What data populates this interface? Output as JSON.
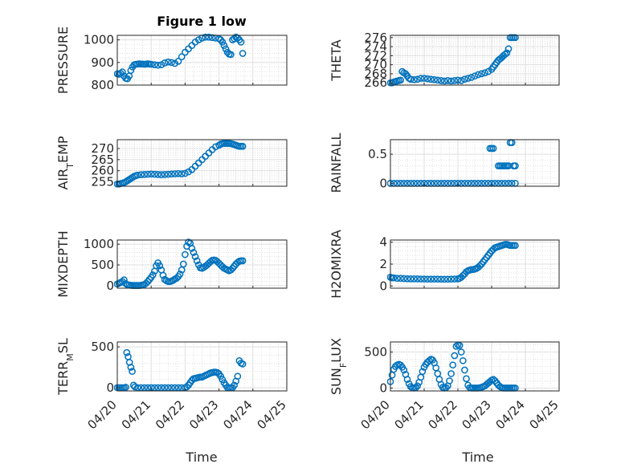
{
  "figure": {
    "title": "Figure 1 low",
    "marker_color": "#0072BD",
    "x_tick_labels": [
      "04/20",
      "04/21",
      "04/22",
      "04/23",
      "04/24",
      "04/25"
    ],
    "x_label": "Time"
  },
  "chart_data": [
    {
      "type": "scatter",
      "ylabel": "PRESSURE",
      "ylim": [
        800,
        1020
      ],
      "ytick_values": [
        800,
        900,
        1000
      ],
      "x": [
        0,
        0.05,
        0.1,
        0.15,
        0.2,
        0.25,
        0.3,
        0.35,
        0.4,
        0.45,
        0.5,
        0.55,
        0.6,
        0.65,
        0.7,
        0.75,
        0.8,
        0.85,
        0.9,
        0.95,
        1,
        1.1,
        1.2,
        1.3,
        1.4,
        1.5,
        1.6,
        1.7,
        1.8,
        1.9,
        2,
        2.1,
        2.2,
        2.3,
        2.4,
        2.5,
        2.6,
        2.7,
        2.8,
        2.9,
        3,
        3.05,
        3.1,
        3.15,
        3.2,
        3.25,
        3.3,
        3.35,
        3.4,
        3.45,
        3.5,
        3.55,
        3.6,
        3.65,
        3.7
      ],
      "y": [
        850,
        848,
        852,
        858,
        840,
        830,
        828,
        840,
        865,
        880,
        890,
        892,
        893,
        894,
        893,
        893,
        892,
        893,
        894,
        893,
        892,
        890,
        888,
        890,
        898,
        902,
        900,
        896,
        905,
        925,
        945,
        960,
        975,
        990,
        1000,
        1008,
        1012,
        1012,
        1010,
        1008,
        1005,
        1000,
        990,
        975,
        960,
        945,
        937,
        935,
        1000,
        1005,
        1012,
        1008,
        1000,
        990,
        940
      ]
    },
    {
      "type": "scatter",
      "ylabel": "THETA",
      "ylim": [
        265.5,
        276.5
      ],
      "ytick_values": [
        266,
        268,
        270,
        272,
        274,
        276
      ],
      "x": [
        0,
        0.05,
        0.1,
        0.15,
        0.2,
        0.25,
        0.3,
        0.35,
        0.4,
        0.45,
        0.5,
        0.55,
        0.6,
        0.7,
        0.8,
        0.9,
        1,
        1.1,
        1.2,
        1.3,
        1.4,
        1.5,
        1.6,
        1.7,
        1.8,
        1.9,
        2,
        2.1,
        2.2,
        2.3,
        2.4,
        2.5,
        2.6,
        2.7,
        2.8,
        2.9,
        3,
        3.05,
        3.1,
        3.15,
        3.2,
        3.25,
        3.3,
        3.35,
        3.4,
        3.45,
        3.5,
        3.55,
        3.6,
        3.65,
        3.7
      ],
      "y": [
        266,
        266,
        266.2,
        266.3,
        266.4,
        266.5,
        266.6,
        268.5,
        268.2,
        268,
        267.5,
        267,
        266.8,
        266.7,
        266.8,
        267,
        267,
        266.9,
        266.8,
        266.7,
        266.6,
        266.5,
        266.4,
        266.5,
        266.4,
        266.5,
        266.6,
        266.5,
        266.8,
        267,
        267.2,
        267.5,
        267.8,
        268,
        268.2,
        268.5,
        269,
        269.5,
        270,
        270.5,
        271,
        271.3,
        271.6,
        272,
        272.3,
        272.6,
        273.5,
        276,
        276,
        276,
        276
      ]
    },
    {
      "type": "scatter",
      "ylabel": "AIR_TEMP",
      "ylim": [
        253,
        274
      ],
      "ytick_values": [
        255,
        260,
        265,
        270
      ],
      "x": [
        0,
        0.05,
        0.1,
        0.15,
        0.2,
        0.25,
        0.3,
        0.35,
        0.4,
        0.45,
        0.5,
        0.55,
        0.6,
        0.7,
        0.8,
        0.9,
        1,
        1.1,
        1.2,
        1.3,
        1.4,
        1.5,
        1.6,
        1.7,
        1.8,
        1.9,
        2,
        2.1,
        2.2,
        2.3,
        2.4,
        2.5,
        2.6,
        2.7,
        2.8,
        2.9,
        3,
        3.05,
        3.1,
        3.15,
        3.2,
        3.25,
        3.3,
        3.35,
        3.4,
        3.45,
        3.5,
        3.55,
        3.6,
        3.65,
        3.7
      ],
      "y": [
        254,
        254,
        254.2,
        254.4,
        254.6,
        255,
        255.5,
        256,
        256.5,
        257,
        257.5,
        257.8,
        258,
        258.2,
        258.3,
        258.4,
        258.5,
        258.4,
        258.3,
        258.2,
        258.3,
        258.4,
        258.5,
        258.6,
        258.7,
        258.6,
        258.8,
        259.5,
        260.5,
        262,
        263.5,
        265,
        266.5,
        268,
        269.5,
        270.8,
        271.5,
        272,
        272.2,
        272.3,
        272.3,
        272.3,
        272.3,
        272.2,
        272,
        271.8,
        271.5,
        271.2,
        271,
        271,
        271
      ]
    },
    {
      "type": "scatter",
      "ylabel": "RAINFALL",
      "ylim": [
        -0.05,
        0.75
      ],
      "ytick_values": [
        0,
        0.5
      ],
      "x": [
        0,
        0.1,
        0.2,
        0.3,
        0.4,
        0.5,
        0.6,
        0.7,
        0.8,
        0.9,
        1,
        1.1,
        1.2,
        1.3,
        1.4,
        1.5,
        1.6,
        1.7,
        1.8,
        1.9,
        2,
        2.1,
        2.2,
        2.3,
        2.4,
        2.5,
        2.6,
        2.7,
        2.8,
        2.9,
        3,
        3.1,
        3.2,
        3.3,
        3.4,
        3.5,
        3.6,
        3.7,
        2.95,
        3.0,
        3.05,
        3.2,
        3.25,
        3.3,
        3.35,
        3.4,
        3.45,
        3.5,
        3.55,
        3.6,
        3.65,
        3.7
      ],
      "y": [
        0,
        0,
        0,
        0,
        0,
        0,
        0,
        0,
        0,
        0,
        0,
        0,
        0,
        0,
        0,
        0,
        0,
        0,
        0,
        0,
        0,
        0,
        0,
        0,
        0,
        0,
        0,
        0,
        0,
        0,
        0,
        0,
        0,
        0,
        0,
        0,
        0,
        0,
        0.6,
        0.6,
        0.6,
        0.3,
        0.3,
        0.3,
        0.3,
        0.3,
        0.3,
        0.3,
        0.7,
        0.7,
        0.3,
        0.3
      ]
    },
    {
      "type": "scatter",
      "ylabel": "MIXDEPTH",
      "ylim": [
        -60,
        1100
      ],
      "ytick_values": [
        0,
        500,
        1000
      ],
      "x": [
        0,
        0.05,
        0.1,
        0.15,
        0.2,
        0.25,
        0.3,
        0.35,
        0.4,
        0.45,
        0.5,
        0.55,
        0.6,
        0.65,
        0.7,
        0.75,
        0.8,
        0.85,
        0.9,
        0.95,
        1,
        1.05,
        1.1,
        1.15,
        1.2,
        1.25,
        1.3,
        1.35,
        1.4,
        1.45,
        1.5,
        1.55,
        1.6,
        1.65,
        1.7,
        1.75,
        1.8,
        1.85,
        1.9,
        1.95,
        2,
        2.05,
        2.1,
        2.15,
        2.2,
        2.25,
        2.3,
        2.35,
        2.4,
        2.45,
        2.5,
        2.55,
        2.6,
        2.65,
        2.7,
        2.75,
        2.8,
        2.85,
        2.9,
        2.95,
        3,
        3.05,
        3.1,
        3.15,
        3.2,
        3.25,
        3.3,
        3.35,
        3.4,
        3.45,
        3.5,
        3.55,
        3.6,
        3.65,
        3.7
      ],
      "y": [
        40,
        60,
        80,
        100,
        140,
        50,
        20,
        15,
        10,
        5,
        5,
        5,
        5,
        5,
        10,
        15,
        30,
        60,
        100,
        150,
        200,
        260,
        350,
        480,
        550,
        480,
        380,
        250,
        150,
        120,
        100,
        100,
        110,
        130,
        160,
        180,
        220,
        280,
        380,
        520,
        750,
        950,
        1050,
        1020,
        900,
        800,
        700,
        600,
        500,
        430,
        420,
        440,
        470,
        500,
        540,
        580,
        610,
        620,
        610,
        580,
        540,
        500,
        460,
        420,
        400,
        380,
        360,
        380,
        420,
        470,
        520,
        560,
        590,
        600,
        600
      ]
    },
    {
      "type": "scatter",
      "ylabel": "H2OMIXRA",
      "ylim": [
        -0.2,
        4.2
      ],
      "ytick_values": [
        0,
        2,
        4
      ],
      "x": [
        0,
        0.05,
        0.1,
        0.2,
        0.3,
        0.4,
        0.5,
        0.6,
        0.7,
        0.8,
        0.9,
        1,
        1.1,
        1.2,
        1.3,
        1.4,
        1.5,
        1.6,
        1.7,
        1.8,
        1.9,
        2,
        2.05,
        2.1,
        2.15,
        2.2,
        2.25,
        2.3,
        2.35,
        2.4,
        2.45,
        2.5,
        2.55,
        2.6,
        2.65,
        2.7,
        2.75,
        2.8,
        2.85,
        2.9,
        2.95,
        3,
        3.05,
        3.1,
        3.15,
        3.2,
        3.25,
        3.3,
        3.35,
        3.4,
        3.45,
        3.5,
        3.55,
        3.6,
        3.65,
        3.7
      ],
      "y": [
        0.8,
        0.75,
        0.75,
        0.7,
        0.7,
        0.68,
        0.66,
        0.65,
        0.65,
        0.65,
        0.64,
        0.64,
        0.63,
        0.63,
        0.63,
        0.63,
        0.62,
        0.62,
        0.62,
        0.63,
        0.64,
        0.65,
        0.7,
        0.8,
        0.95,
        1.1,
        1.3,
        1.4,
        1.45,
        1.5,
        1.5,
        1.55,
        1.6,
        1.7,
        1.85,
        2,
        2.2,
        2.4,
        2.6,
        2.8,
        3.0,
        3.2,
        3.35,
        3.5,
        3.55,
        3.6,
        3.65,
        3.7,
        3.75,
        3.8,
        3.8,
        3.75,
        3.7,
        3.7,
        3.7,
        3.7
      ]
    },
    {
      "type": "scatter",
      "ylabel": "TERR_MSL",
      "ylim": [
        -40,
        560
      ],
      "ytick_values": [
        0,
        500
      ],
      "x": [
        0,
        0.05,
        0.1,
        0.15,
        0.2,
        0.25,
        0.28,
        0.32,
        0.36,
        0.4,
        0.44,
        0.48,
        0.52,
        0.6,
        0.7,
        0.8,
        0.9,
        1,
        1.1,
        1.2,
        1.3,
        1.4,
        1.5,
        1.6,
        1.7,
        1.8,
        1.9,
        2,
        2.05,
        2.1,
        2.15,
        2.2,
        2.25,
        2.3,
        2.35,
        2.4,
        2.45,
        2.5,
        2.55,
        2.6,
        2.65,
        2.7,
        2.75,
        2.8,
        2.85,
        2.9,
        2.95,
        3,
        3.05,
        3.1,
        3.15,
        3.2,
        3.25,
        3.3,
        3.35,
        3.4,
        3.45,
        3.5,
        3.55,
        3.6,
        3.65,
        3.7
      ],
      "y": [
        0,
        0,
        0,
        0,
        0,
        5,
        430,
        380,
        310,
        250,
        200,
        30,
        10,
        0,
        0,
        0,
        0,
        0,
        0,
        0,
        0,
        0,
        0,
        0,
        0,
        0,
        0,
        0,
        10,
        30,
        60,
        90,
        110,
        115,
        120,
        125,
        130,
        130,
        140,
        150,
        160,
        170,
        180,
        185,
        190,
        190,
        185,
        170,
        140,
        100,
        60,
        30,
        0,
        0,
        0,
        0,
        30,
        80,
        140,
        330,
        300,
        290
      ]
    },
    {
      "type": "scatter",
      "ylabel": "SUN_FLUX",
      "ylim": [
        -40,
        640
      ],
      "ytick_values": [
        0,
        500
      ],
      "x": [
        0,
        0.05,
        0.1,
        0.15,
        0.2,
        0.25,
        0.3,
        0.35,
        0.4,
        0.45,
        0.5,
        0.55,
        0.6,
        0.65,
        0.7,
        0.75,
        0.8,
        0.85,
        0.9,
        0.95,
        1,
        1.05,
        1.1,
        1.15,
        1.2,
        1.25,
        1.3,
        1.35,
        1.4,
        1.45,
        1.5,
        1.55,
        1.6,
        1.65,
        1.7,
        1.75,
        1.8,
        1.85,
        1.9,
        1.95,
        2,
        2.05,
        2.1,
        2.15,
        2.2,
        2.25,
        2.3,
        2.35,
        2.4,
        2.45,
        2.5,
        2.55,
        2.6,
        2.65,
        2.7,
        2.75,
        2.8,
        2.85,
        2.9,
        2.95,
        3,
        3.05,
        3.1,
        3.15,
        3.2,
        3.25,
        3.3,
        3.35,
        3.4,
        3.45,
        3.5,
        3.55,
        3.6,
        3.65,
        3.7
      ],
      "y": [
        90,
        180,
        260,
        300,
        320,
        330,
        320,
        290,
        250,
        190,
        120,
        60,
        20,
        5,
        0,
        5,
        30,
        80,
        150,
        230,
        290,
        330,
        360,
        380,
        400,
        390,
        350,
        280,
        200,
        120,
        50,
        10,
        0,
        5,
        30,
        100,
        200,
        320,
        450,
        580,
        600,
        590,
        500,
        380,
        250,
        130,
        40,
        5,
        0,
        0,
        0,
        0,
        0,
        5,
        10,
        20,
        30,
        50,
        70,
        90,
        110,
        120,
        100,
        70,
        40,
        20,
        5,
        0,
        0,
        0,
        0,
        0,
        0,
        0,
        0
      ]
    }
  ]
}
